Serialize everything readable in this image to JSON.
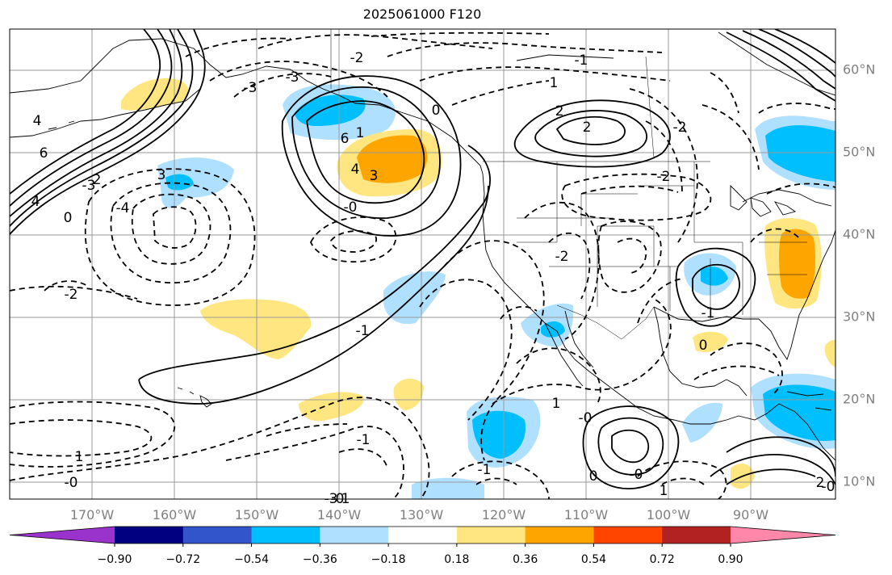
{
  "title": "2025061000 F120",
  "lat_labels": [
    "60°N",
    "50°N",
    "40°N",
    "30°N",
    "20°N",
    "10°N"
  ],
  "lon_labels": [
    "170°W",
    "160°W",
    "150°W",
    "140°W",
    "130°W",
    "120°W",
    "110°W",
    "100°W",
    "90°W"
  ],
  "colorbar": {
    "colors": [
      "#9933cc",
      "#000080",
      "#3355cc",
      "#00bfff",
      "#b0e0ff",
      "#ffffff",
      "#ffe680",
      "#ffa500",
      "#ff4500",
      "#b22222",
      "#ff88aa"
    ],
    "tick_labels": [
      "−0.90",
      "−0.72",
      "−0.54",
      "−0.36",
      "−0.18",
      "0.18",
      "0.36",
      "0.54",
      "0.72",
      "0.90"
    ]
  },
  "contour_labels": [
    {
      "text": "-2",
      "key": "a"
    },
    {
      "text": "-3",
      "key": "b"
    },
    {
      "text": "1",
      "key": "c"
    },
    {
      "text": "4",
      "key": "d"
    },
    {
      "text": "6",
      "key": "e"
    },
    {
      "text": "4",
      "key": "f"
    },
    {
      "text": "3",
      "key": "g"
    },
    {
      "text": "2",
      "key": "h"
    },
    {
      "text": "-3",
      "key": "i"
    },
    {
      "text": "-4",
      "key": "j"
    },
    {
      "text": "0",
      "key": "k"
    },
    {
      "text": "-3",
      "key": "l"
    },
    {
      "text": "0",
      "key": "m"
    },
    {
      "text": "1",
      "key": "n"
    },
    {
      "text": "6",
      "key": "o"
    },
    {
      "text": "4",
      "key": "p"
    },
    {
      "text": "3",
      "key": "q"
    },
    {
      "text": "2",
      "key": "r"
    },
    {
      "text": "2",
      "key": "s"
    },
    {
      "text": "-0",
      "key": "t"
    },
    {
      "text": "-2",
      "key": "u"
    },
    {
      "text": "-2",
      "key": "v"
    },
    {
      "text": "-1",
      "key": "w"
    },
    {
      "text": "1",
      "key": "x"
    },
    {
      "text": "-1",
      "key": "y"
    },
    {
      "text": "-0",
      "key": "z"
    },
    {
      "text": "-2",
      "key": "aa"
    },
    {
      "text": "-1",
      "key": "ab"
    },
    {
      "text": "0",
      "key": "ac"
    },
    {
      "text": "1",
      "key": "ad"
    },
    {
      "text": "-0",
      "key": "ae"
    },
    {
      "text": "0",
      "key": "af"
    },
    {
      "text": "-0",
      "key": "ag"
    },
    {
      "text": "1",
      "key": "ah"
    },
    {
      "text": "2",
      "key": "ai"
    },
    {
      "text": "-0",
      "key": "aj"
    },
    {
      "text": "-1",
      "key": "ak"
    },
    {
      "text": "-0",
      "key": "al"
    },
    {
      "text": "-1",
      "key": "am"
    },
    {
      "text": "1",
      "key": "an"
    },
    {
      "text": "-3",
      "key": "ao"
    },
    {
      "text": "-2",
      "key": "ap"
    }
  ]
}
